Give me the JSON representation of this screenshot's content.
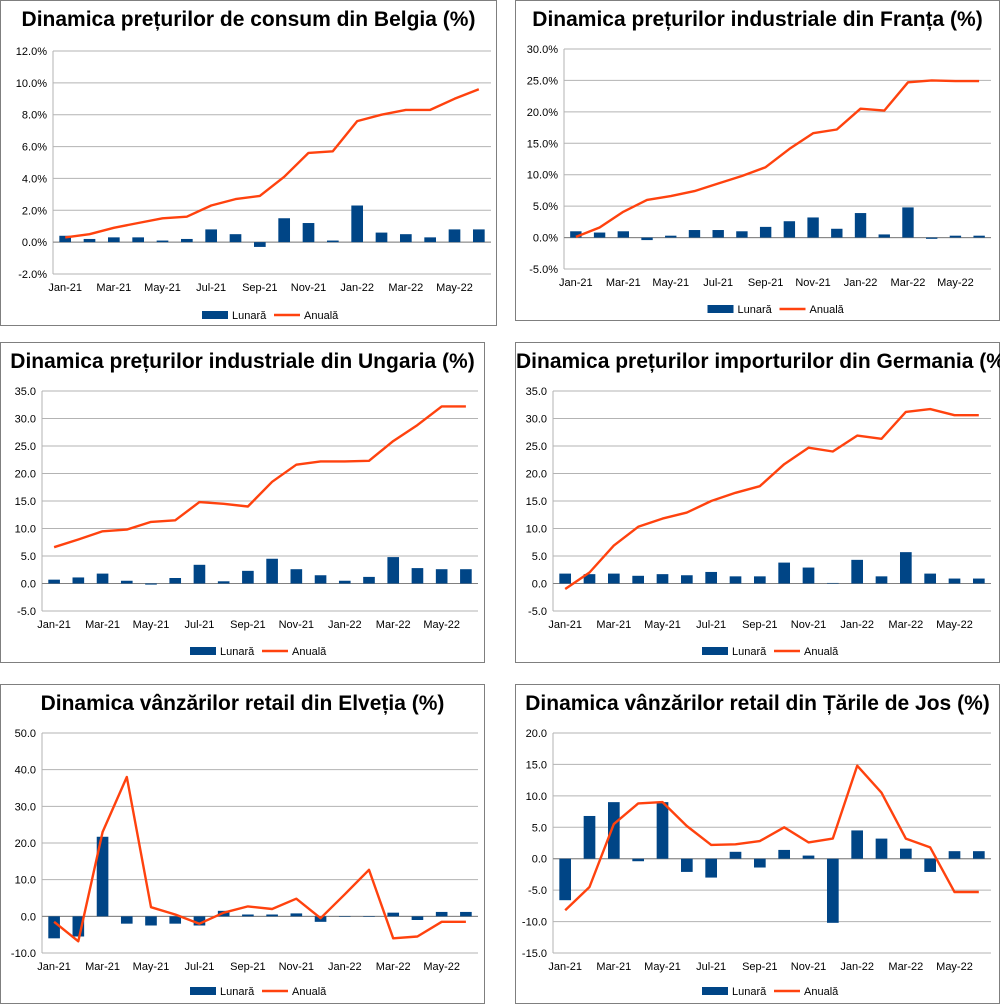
{
  "legend": {
    "monthly": "Lunară",
    "annual": "Anuală"
  },
  "colors": {
    "bar": "#004586",
    "line": "#ff420e",
    "axis": "#b3b3b3",
    "grid": "#b3b3b3"
  },
  "chart_data": [
    {
      "type": "bar+line",
      "title": "Dinamica prețurilor de consum din Belgia (%)",
      "legend_position": "bottom",
      "categories": [
        "Jan-21",
        "Feb-21",
        "Mar-21",
        "Apr-21",
        "May-21",
        "Jun-21",
        "Jul-21",
        "Aug-21",
        "Sep-21",
        "Oct-21",
        "Nov-21",
        "Dec-21",
        "Jan-22",
        "Feb-22",
        "Mar-22",
        "Apr-22",
        "May-22",
        "Jun-22"
      ],
      "tick_labels": [
        "Jan-21",
        "Mar-21",
        "May-21",
        "Jul-21",
        "Sep-21",
        "Nov-21",
        "Jan-22",
        "Mar-22",
        "May-22"
      ],
      "y_ticks": [
        "-2.0%",
        "0.0%",
        "2.0%",
        "4.0%",
        "6.0%",
        "8.0%",
        "10.0%",
        "12.0%"
      ],
      "ylim": [
        -2,
        12
      ],
      "series": [
        {
          "name": "Lunară",
          "kind": "bar",
          "values": [
            0.4,
            0.2,
            0.3,
            0.3,
            0.1,
            0.2,
            0.8,
            0.5,
            -0.3,
            1.5,
            1.2,
            0.1,
            2.3,
            0.6,
            0.5,
            0.3,
            0.8,
            0.8
          ]
        },
        {
          "name": "Anuală",
          "kind": "line",
          "values": [
            0.3,
            0.5,
            0.9,
            1.2,
            1.5,
            1.6,
            2.3,
            2.7,
            2.9,
            4.1,
            5.6,
            5.7,
            7.6,
            8.0,
            8.3,
            8.3,
            9.0,
            9.6
          ]
        }
      ]
    },
    {
      "type": "bar+line",
      "title": "Dinamica prețurilor industriale din Franța (%)",
      "legend_position": "bottom",
      "categories": [
        "Jan-21",
        "Feb-21",
        "Mar-21",
        "Apr-21",
        "May-21",
        "Jun-21",
        "Jul-21",
        "Aug-21",
        "Sep-21",
        "Oct-21",
        "Nov-21",
        "Dec-21",
        "Jan-22",
        "Feb-22",
        "Mar-22",
        "Apr-22",
        "May-22",
        "Jun-22"
      ],
      "tick_labels": [
        "Jan-21",
        "Mar-21",
        "May-21",
        "Jul-21",
        "Sep-21",
        "Nov-21",
        "Jan-22",
        "Mar-22",
        "May-22"
      ],
      "y_ticks": [
        "-5.0%",
        "0.0%",
        "5.0%",
        "10.0%",
        "15.0%",
        "20.0%",
        "25.0%",
        "30.0%"
      ],
      "ylim": [
        -5,
        30
      ],
      "series": [
        {
          "name": "Lunară",
          "kind": "bar",
          "values": [
            1.0,
            0.8,
            1.0,
            -0.4,
            0.3,
            1.2,
            1.2,
            1.0,
            1.7,
            2.6,
            3.2,
            1.4,
            3.9,
            0.5,
            4.8,
            -0.2,
            0.3,
            0.3
          ]
        },
        {
          "name": "Anuală",
          "kind": "line",
          "values": [
            0.1,
            1.6,
            4.1,
            6.0,
            6.6,
            7.4,
            8.6,
            9.8,
            11.2,
            14.1,
            16.6,
            17.2,
            20.5,
            20.2,
            24.7,
            25.0,
            24.9,
            24.9
          ]
        }
      ]
    },
    {
      "type": "bar+line",
      "title": "Dinamica prețurilor industriale din Ungaria (%)",
      "legend_position": "bottom",
      "categories": [
        "Jan-21",
        "Feb-21",
        "Mar-21",
        "Apr-21",
        "May-21",
        "Jun-21",
        "Jul-21",
        "Aug-21",
        "Sep-21",
        "Oct-21",
        "Nov-21",
        "Dec-21",
        "Jan-22",
        "Feb-22",
        "Mar-22",
        "Apr-22",
        "May-22",
        "Jun-22"
      ],
      "tick_labels": [
        "Jan-21",
        "Mar-21",
        "May-21",
        "Jul-21",
        "Sep-21",
        "Nov-21",
        "Jan-22",
        "Mar-22",
        "May-22"
      ],
      "y_ticks": [
        "-5.0",
        "0.0",
        "5.0",
        "10.0",
        "15.0",
        "20.0",
        "25.0",
        "30.0",
        "35.0"
      ],
      "ylim": [
        -5,
        35
      ],
      "series": [
        {
          "name": "Lunară",
          "kind": "bar",
          "values": [
            0.7,
            1.1,
            1.8,
            0.5,
            -0.2,
            1.0,
            3.4,
            0.4,
            2.3,
            4.5,
            2.6,
            1.5,
            0.5,
            1.2,
            4.8,
            2.8,
            2.6,
            2.6
          ]
        },
        {
          "name": "Anuală",
          "kind": "line",
          "values": [
            6.6,
            8.0,
            9.5,
            9.8,
            11.2,
            11.5,
            14.8,
            14.5,
            14.0,
            18.5,
            21.6,
            22.2,
            22.2,
            22.3,
            25.9,
            28.8,
            32.2,
            32.2
          ]
        }
      ]
    },
    {
      "type": "bar+line",
      "title": "Dinamica prețurilor importurilor din Germania (%)",
      "legend_position": "bottom",
      "categories": [
        "Jan-21",
        "Feb-21",
        "Mar-21",
        "Apr-21",
        "May-21",
        "Jun-21",
        "Jul-21",
        "Aug-21",
        "Sep-21",
        "Oct-21",
        "Nov-21",
        "Dec-21",
        "Jan-22",
        "Feb-22",
        "Mar-22",
        "Apr-22",
        "May-22",
        "Jun-22"
      ],
      "tick_labels": [
        "Jan-21",
        "Mar-21",
        "May-21",
        "Jul-21",
        "Sep-21",
        "Nov-21",
        "Jan-22",
        "Mar-22",
        "May-22"
      ],
      "y_ticks": [
        "-5.0",
        "0.0",
        "5.0",
        "10.0",
        "15.0",
        "20.0",
        "25.0",
        "30.0",
        "35.0"
      ],
      "ylim": [
        -5,
        35
      ],
      "series": [
        {
          "name": "Lunară",
          "kind": "bar",
          "values": [
            1.8,
            1.7,
            1.8,
            1.4,
            1.7,
            1.5,
            2.1,
            1.3,
            1.3,
            3.8,
            2.9,
            0.1,
            4.3,
            1.3,
            5.7,
            1.8,
            0.9,
            0.9
          ]
        },
        {
          "name": "Anuală",
          "kind": "line",
          "values": [
            -1.0,
            2.0,
            6.9,
            10.3,
            11.8,
            12.9,
            15.0,
            16.5,
            17.7,
            21.7,
            24.7,
            24.0,
            26.9,
            26.3,
            31.2,
            31.7,
            30.6,
            30.6
          ]
        }
      ]
    },
    {
      "type": "bar+line",
      "title": "Dinamica vânzărilor retail din Elveția (%)",
      "legend_position": "bottom",
      "categories": [
        "Jan-21",
        "Feb-21",
        "Mar-21",
        "Apr-21",
        "May-21",
        "Jun-21",
        "Jul-21",
        "Aug-21",
        "Sep-21",
        "Oct-21",
        "Nov-21",
        "Dec-21",
        "Jan-22",
        "Feb-22",
        "Mar-22",
        "Apr-22",
        "May-22",
        "Jun-22"
      ],
      "tick_labels": [
        "Jan-21",
        "Mar-21",
        "May-21",
        "Jul-21",
        "Sep-21",
        "Nov-21",
        "Jan-22",
        "Mar-22",
        "May-22"
      ],
      "y_ticks": [
        "-10.0",
        "0.0",
        "10.0",
        "20.0",
        "30.0",
        "40.0",
        "50.0"
      ],
      "ylim": [
        -10,
        50
      ],
      "series": [
        {
          "name": "Lunară",
          "kind": "bar",
          "values": [
            -6.0,
            -5.5,
            21.7,
            -2.0,
            -2.5,
            -2.0,
            -2.5,
            1.5,
            0.5,
            0.5,
            0.8,
            -1.5,
            0.0,
            0.0,
            1.0,
            -1.0,
            1.2,
            1.2
          ]
        },
        {
          "name": "Anuală",
          "kind": "line",
          "values": [
            -1.5,
            -6.8,
            23.0,
            38.0,
            2.5,
            0.5,
            -2.0,
            1.0,
            2.7,
            2.0,
            4.8,
            -0.5,
            6.0,
            12.7,
            -6.0,
            -5.5,
            -1.5,
            -1.5
          ]
        }
      ]
    },
    {
      "type": "bar+line",
      "title": "Dinamica vânzărilor retail din Țările de Jos (%)",
      "legend_position": "bottom",
      "categories": [
        "Jan-21",
        "Feb-21",
        "Mar-21",
        "Apr-21",
        "May-21",
        "Jun-21",
        "Jul-21",
        "Aug-21",
        "Sep-21",
        "Oct-21",
        "Nov-21",
        "Dec-21",
        "Jan-22",
        "Feb-22",
        "Mar-22",
        "Apr-22",
        "May-22",
        "Jun-22"
      ],
      "tick_labels": [
        "Jan-21",
        "Mar-21",
        "May-21",
        "Jul-21",
        "Sep-21",
        "Nov-21",
        "Jan-22",
        "Mar-22",
        "May-22"
      ],
      "y_ticks": [
        "-15.0",
        "-10.0",
        "-5.0",
        "0.0",
        "5.0",
        "10.0",
        "15.0",
        "20.0"
      ],
      "ylim": [
        -15,
        20
      ],
      "series": [
        {
          "name": "Lunară",
          "kind": "bar",
          "values": [
            -6.6,
            6.8,
            9.0,
            -0.4,
            9.0,
            -2.1,
            -3.0,
            1.1,
            -1.4,
            1.4,
            0.5,
            -10.2,
            4.5,
            3.2,
            1.6,
            -2.1,
            1.2,
            1.2
          ]
        },
        {
          "name": "Anuală",
          "kind": "line",
          "values": [
            -8.2,
            -4.5,
            5.5,
            8.8,
            9.0,
            5.2,
            2.2,
            2.3,
            2.8,
            5.0,
            2.6,
            3.2,
            14.8,
            10.5,
            3.2,
            1.8,
            -5.3,
            -5.3
          ]
        }
      ]
    }
  ]
}
